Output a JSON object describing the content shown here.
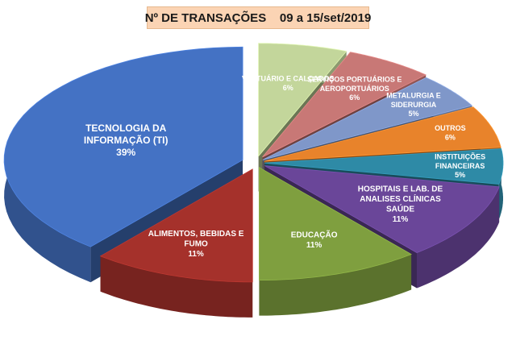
{
  "chart_data": {
    "type": "pie",
    "title": "Nº DE TRANSAÇÕES    09 a 15/set/2019",
    "legend": "none",
    "slices": [
      {
        "name": "TECNOLOGIA DA INFORMAÇÃO (TI)",
        "label_lines": [
          "TECNOLOGIA DA",
          "INFORMAÇÃO (TI)"
        ],
        "value_label": "39%",
        "value": 39,
        "color": "#4472c4",
        "label_color": "#ffffff"
      },
      {
        "name": "ALIMENTOS, BEBIDAS E FUMO",
        "label_lines": [
          "ALIMENTOS, BEBIDAS E",
          "FUMO"
        ],
        "value_label": "11%",
        "value": 11,
        "color": "#a5312b",
        "label_color": "#ffffff"
      },
      {
        "name": "EDUCAÇÃO",
        "label_lines": [
          "EDUCAÇÃO"
        ],
        "value_label": "11%",
        "value": 11,
        "color": "#7f9f3f",
        "label_color": "#ffffff"
      },
      {
        "name": "HOSPITAIS E LAB. DE ANALISES CLÍNICAS SAÚDE",
        "label_lines": [
          "HOSPITAIS E LAB. DE",
          "ANALISES CLÍNICAS",
          "SAÚDE"
        ],
        "value_label": "11%",
        "value": 11,
        "color": "#6a4699",
        "label_color": "#ffffff"
      },
      {
        "name": "INSTITUIÇÕES FINANCEIRAS",
        "label_lines": [
          "INSTITUIÇÕES",
          "FINANCEIRAS"
        ],
        "value_label": "5%",
        "value": 5,
        "color": "#2e8aa6",
        "label_color": "#ffffff"
      },
      {
        "name": "OUTROS",
        "label_lines": [
          "OUTROS"
        ],
        "value_label": "6%",
        "value": 6,
        "color": "#e8832b",
        "label_color": "#ffffff"
      },
      {
        "name": "METALURGIA E SIDERURGIA",
        "label_lines": [
          "METALURGIA E",
          "SIDERURGIA"
        ],
        "value_label": "5%",
        "value": 5,
        "color": "#7f97c9",
        "label_color": "#ffffff"
      },
      {
        "name": "SERVIÇOS PORTUÁRIOS E AEROPORTUÁRIOS",
        "label_lines": [
          "SERVIÇOS PORTUÁRIOS E",
          "AEROPORTUÁRIOS"
        ],
        "value_label": "6%",
        "value": 6,
        "color": "#c87876",
        "label_color": "#ffffff"
      },
      {
        "name": "VESTUÁRIO E CALÇADOS",
        "label_lines": [
          "VESTUÁRIO E CALÇADOS"
        ],
        "value_label": "6%",
        "value": 6,
        "color": "#c3d69b",
        "label_color": "#1a1a1a"
      }
    ]
  }
}
